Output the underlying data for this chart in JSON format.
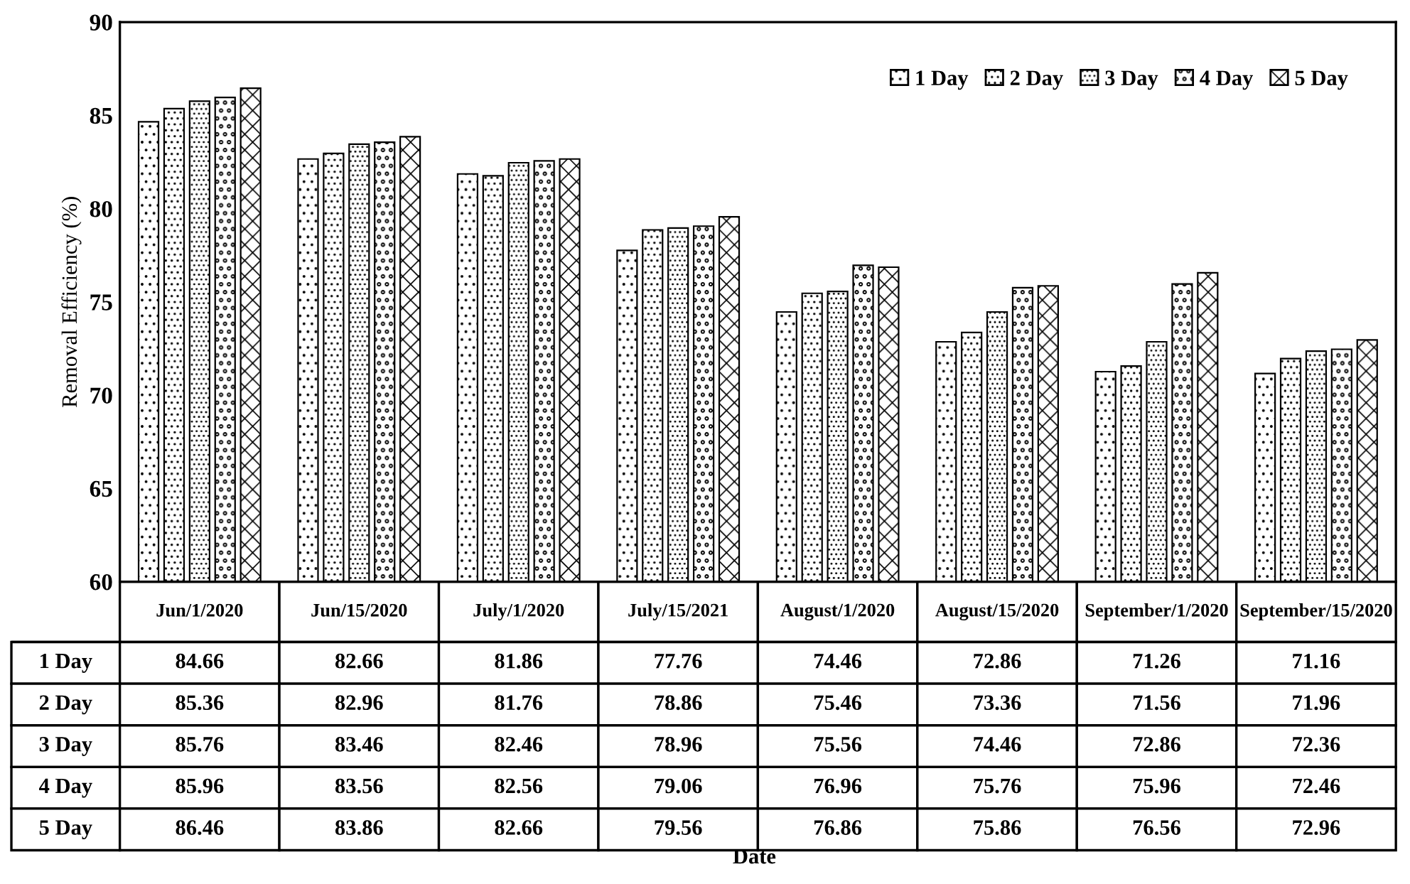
{
  "chart_data": {
    "type": "bar",
    "annotations": [
      "Date"
    ],
    "ylabel": "Removal Efficiency (%)",
    "categories": [
      "Jun/1/2020",
      "Jun/15/2020",
      "July/1/2020",
      "July/15/2021",
      "August/1/2020",
      "August/15/2020",
      "September/1/2020",
      "September/15/2020"
    ],
    "series": [
      {
        "name": "1 Day",
        "color": "#ffffff",
        "values": [
          84.66,
          82.66,
          81.86,
          77.76,
          74.46,
          72.86,
          71.26,
          71.16
        ]
      },
      {
        "name": "2 Day",
        "color": "#ffffff",
        "values": [
          85.36,
          82.96,
          81.76,
          78.86,
          75.46,
          73.36,
          71.56,
          71.96
        ]
      },
      {
        "name": "3 Day",
        "color": "#ffffff",
        "values": [
          85.76,
          83.46,
          82.46,
          78.96,
          75.56,
          74.46,
          72.86,
          72.36
        ]
      },
      {
        "name": "4 Day",
        "color": "#ffffff",
        "values": [
          85.96,
          83.56,
          82.56,
          79.06,
          76.96,
          75.76,
          75.96,
          72.46
        ]
      },
      {
        "name": "5 Day",
        "color": "#ffffff",
        "values": [
          86.46,
          83.86,
          82.66,
          79.56,
          76.86,
          75.86,
          76.56,
          72.96
        ]
      }
    ],
    "ylim": [
      60,
      90
    ],
    "yticks": [
      60,
      65,
      70,
      75,
      80,
      85,
      90
    ],
    "data_labels": true,
    "legend": "top right",
    "grid": false
  }
}
